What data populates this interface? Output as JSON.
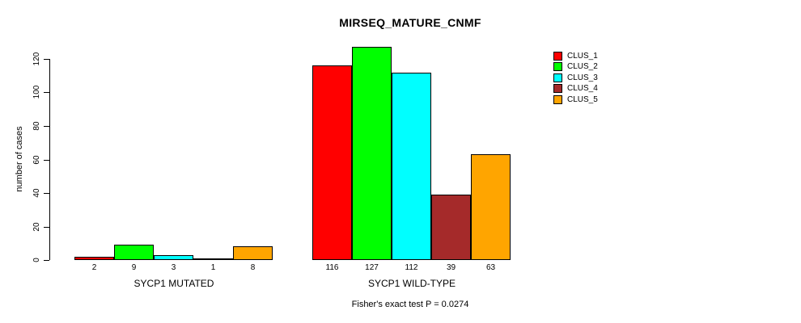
{
  "chart_data": {
    "type": "bar",
    "title": "MIRSEQ_MATURE_CNMF",
    "ylabel": "number of cases",
    "xlabel": "",
    "ylim": [
      0,
      120
    ],
    "yticks": [
      0,
      20,
      40,
      60,
      80,
      100,
      120
    ],
    "grid": false,
    "legend_position": "right-outside",
    "groups": [
      "SYCP1 MUTATED",
      "SYCP1 WILD-TYPE"
    ],
    "series": [
      {
        "name": "CLUS_1",
        "color": "#FF0000",
        "values": [
          2,
          116
        ]
      },
      {
        "name": "CLUS_2",
        "color": "#00FF00",
        "values": [
          9,
          127
        ]
      },
      {
        "name": "CLUS_3",
        "color": "#00FFFF",
        "values": [
          3,
          112
        ]
      },
      {
        "name": "CLUS_4",
        "color": "#A52A2A",
        "values": [
          1,
          39
        ]
      },
      {
        "name": "CLUS_5",
        "color": "#FFA500",
        "values": [
          8,
          63
        ]
      }
    ],
    "bar_value_labels_shown": true,
    "annotation": "Fisher's exact test P = 0.0274",
    "axis_color": "#000000",
    "bar_border_color": "#000000"
  }
}
